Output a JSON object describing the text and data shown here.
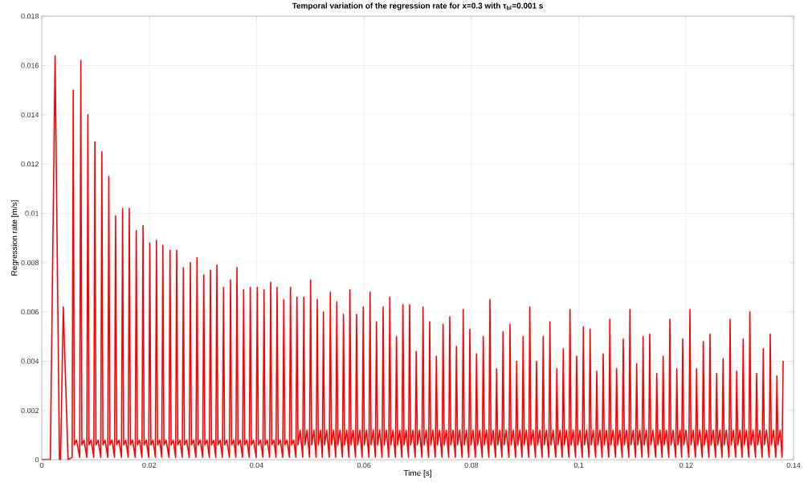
{
  "chart_data": {
    "type": "line",
    "title": "Temporal variation of the regression rate for x=0.3 with τ$_{bl}$=0.001 s",
    "xlabel": "Time [s]",
    "ylabel": "Regression rate [m/s]",
    "xlim": [
      0,
      0.14
    ],
    "ylim": [
      0,
      0.018
    ],
    "xticks": [
      0,
      0.02,
      0.04,
      0.06,
      0.08,
      0.1,
      0.12,
      0.14
    ],
    "yticks": [
      0,
      0.002,
      0.004,
      0.006,
      0.008,
      0.01,
      0.012,
      0.014,
      0.016,
      0.018
    ],
    "grid": true,
    "marker": "none",
    "line_style": "solid",
    "series": [
      {
        "color": "#ff0000",
        "x": [
          0,
          0.0016,
          0.00248,
          0.0033,
          0.0035,
          0.00401,
          0.0049,
          0.00566,
          0.00586,
          0.00606,
          0.00646,
          0.00707,
          0.00727,
          0.00747,
          0.00787,
          0.00839,
          0.00859,
          0.00879,
          0.00919,
          0.00969,
          0.00989,
          0.01009,
          0.01049,
          0.01099,
          0.01119,
          0.01139,
          0.01179,
          0.01229,
          0.01249,
          0.01269,
          0.01309,
          0.01355,
          0.01375,
          0.01395,
          0.01435,
          0.01485,
          0.01505,
          0.01525,
          0.01565,
          0.0161,
          0.0163,
          0.0165,
          0.0169,
          0.0174,
          0.0176,
          0.0178,
          0.0182,
          0.01866,
          0.01886,
          0.01906,
          0.01946,
          0.01992,
          0.02012,
          0.02032,
          0.02072,
          0.02116,
          0.02136,
          0.02156,
          0.02196,
          0.02235,
          0.02255,
          0.02275,
          0.02315,
          0.02369,
          0.02389,
          0.02409,
          0.02449,
          0.02493,
          0.02513,
          0.02533,
          0.02573,
          0.02617,
          0.02637,
          0.02657,
          0.02697,
          0.02747,
          0.02767,
          0.02787,
          0.02827,
          0.02871,
          0.02891,
          0.02911,
          0.02951,
          0.02997,
          0.03017,
          0.03037,
          0.03077,
          0.03121,
          0.03141,
          0.03161,
          0.03201,
          0.03241,
          0.03261,
          0.03281,
          0.03321,
          0.03365,
          0.03385,
          0.03405,
          0.03445,
          0.03495,
          0.03515,
          0.03535,
          0.03575,
          0.03615,
          0.03635,
          0.03655,
          0.03695,
          0.03739,
          0.03759,
          0.03779,
          0.03819,
          0.03864,
          0.03884,
          0.03904,
          0.03944,
          0.03993,
          0.04013,
          0.04033,
          0.04073,
          0.04119,
          0.04139,
          0.04159,
          0.04199,
          0.04243,
          0.04263,
          0.04283,
          0.04323,
          0.04362,
          0.04382,
          0.04402,
          0.04442,
          0.04487,
          0.04507,
          0.04527,
          0.04567,
          0.04612,
          0.04632,
          0.04652,
          0.04692,
          0.04732,
          0.04752,
          0.04772,
          0.04812,
          0.0486,
          0.0488,
          0.049,
          0.0494,
          0.04986,
          0.05006,
          0.05026,
          0.05066,
          0.0511,
          0.0513,
          0.0515,
          0.0519,
          0.05225,
          0.05245,
          0.05265,
          0.05305,
          0.05354,
          0.05374,
          0.05394,
          0.05434,
          0.05474,
          0.05494,
          0.05514,
          0.05554,
          0.05599,
          0.05619,
          0.05639,
          0.05679,
          0.05719,
          0.05739,
          0.05759,
          0.05799,
          0.05843,
          0.05863,
          0.05883,
          0.05923,
          0.05967,
          0.05987,
          0.06007,
          0.06047,
          0.06093,
          0.06113,
          0.06133,
          0.06173,
          0.06213,
          0.06233,
          0.06253,
          0.06293,
          0.06337,
          0.06357,
          0.06377,
          0.06417,
          0.06461,
          0.06481,
          0.06501,
          0.06541,
          0.06586,
          0.06606,
          0.06626,
          0.06666,
          0.06706,
          0.06726,
          0.06746,
          0.06786,
          0.0683,
          0.0685,
          0.0687,
          0.0691,
          0.06954,
          0.06974,
          0.06994,
          0.07034,
          0.0708,
          0.071,
          0.0712,
          0.0716,
          0.07204,
          0.07224,
          0.07244,
          0.07284,
          0.07328,
          0.07348,
          0.07368,
          0.07408,
          0.07454,
          0.07474,
          0.07494,
          0.07534,
          0.07578,
          0.07598,
          0.07618,
          0.07658,
          0.07702,
          0.07722,
          0.07742,
          0.07782,
          0.07828,
          0.07848,
          0.07868,
          0.07908,
          0.07952,
          0.07972,
          0.07992,
          0.08032,
          0.08076,
          0.08096,
          0.08116,
          0.08156,
          0.08202,
          0.08222,
          0.08242,
          0.08282,
          0.08326,
          0.08346,
          0.08366,
          0.08406,
          0.0845,
          0.0847,
          0.0849,
          0.0853,
          0.0857,
          0.0859,
          0.0861,
          0.0865,
          0.087,
          0.0872,
          0.0874,
          0.0878,
          0.08824,
          0.08844,
          0.08864,
          0.08904,
          0.08944,
          0.08964,
          0.08984,
          0.09024,
          0.09069,
          0.09089,
          0.09109,
          0.09149,
          0.09194,
          0.09214,
          0.09234,
          0.09274,
          0.09318,
          0.09338,
          0.09358,
          0.09398,
          0.09443,
          0.09463,
          0.09483,
          0.09523,
          0.09572,
          0.09592,
          0.09612,
          0.09652,
          0.09692,
          0.09712,
          0.09732,
          0.09772,
          0.09817,
          0.09837,
          0.09857,
          0.09897,
          0.09941,
          0.09961,
          0.09981,
          0.10021,
          0.10066,
          0.10086,
          0.10106,
          0.10146,
          0.10191,
          0.10211,
          0.10231,
          0.10271,
          0.10315,
          0.10335,
          0.10355,
          0.10395,
          0.10435,
          0.10455,
          0.10475,
          0.10515,
          0.10559,
          0.10579,
          0.10599,
          0.10639,
          0.10685,
          0.10705,
          0.10725,
          0.10765,
          0.10809,
          0.10829,
          0.10849,
          0.10889,
          0.10933,
          0.10953,
          0.10973,
          0.11013,
          0.11058,
          0.11078,
          0.11098,
          0.11138,
          0.11178,
          0.11198,
          0.11218,
          0.11258,
          0.11302,
          0.11322,
          0.11342,
          0.11382,
          0.11433,
          0.11453,
          0.11473,
          0.11513,
          0.11552,
          0.11572,
          0.11592,
          0.11632,
          0.11677,
          0.11697,
          0.11717,
          0.11757,
          0.11806,
          0.11826,
          0.11846,
          0.11886,
          0.11916,
          0.11936,
          0.11956,
          0.11996,
          0.1205,
          0.1207,
          0.1209,
          0.1213,
          0.12174,
          0.12194,
          0.12214,
          0.12254,
          0.123,
          0.1232,
          0.1234,
          0.1238,
          0.12424,
          0.12444,
          0.12464,
          0.12504,
          0.12548,
          0.12568,
          0.12588,
          0.12628,
          0.12668,
          0.12688,
          0.12708,
          0.12748,
          0.12798,
          0.12818,
          0.12838,
          0.12878,
          0.12922,
          0.12942,
          0.12962,
          0.13002,
          0.13042,
          0.13062,
          0.13082,
          0.13122,
          0.13167,
          0.13187,
          0.13207,
          0.13247,
          0.13292,
          0.13312,
          0.13332,
          0.13372,
          0.13416,
          0.13436,
          0.13456,
          0.13496,
          0.13546,
          0.13566,
          0.13586,
          0.13626,
          0.1367,
          0.1369,
          0.1371,
          0.1375,
          0.13786,
          0.13806
        ],
        "values": [
          0,
          0,
          0.0164,
          0,
          0,
          0.0062,
          0,
          0.0001,
          0.015,
          0.0006,
          0.0008,
          0.0001,
          0.0162,
          0.0006,
          0.0008,
          0.0001,
          0.014,
          0.0006,
          0.0008,
          0.0001,
          0.0129,
          0.0006,
          0.0008,
          0.0001,
          0.0125,
          0.0006,
          0.0008,
          0.0001,
          0.0115,
          0.0006,
          0.0008,
          0.0001,
          0.0099,
          0.0006,
          0.0008,
          0.0001,
          0.0102,
          0.0006,
          0.0008,
          0.0001,
          0.0102,
          0.0006,
          0.0008,
          0.0001,
          0.0093,
          0.0006,
          0.0008,
          0.0001,
          0.0095,
          0.0006,
          0.0008,
          0.0001,
          0.0088,
          0.0006,
          0.0008,
          0.0001,
          0.0089,
          0.0006,
          0.0008,
          0.0001,
          0.0087,
          0.0006,
          0.0008,
          0.0001,
          0.0085,
          0.0006,
          0.0008,
          0.0001,
          0.0085,
          0.0006,
          0.0008,
          0.0001,
          0.0078,
          0.0006,
          0.0008,
          0.0001,
          0.008,
          0.0006,
          0.0008,
          0.0001,
          0.0082,
          0.0006,
          0.0008,
          0.0001,
          0.0075,
          0.0006,
          0.0008,
          0.0001,
          0.0077,
          0.0006,
          0.0008,
          0.0001,
          0.0079,
          0.0006,
          0.0008,
          0.0001,
          0.007,
          0.0006,
          0.0008,
          0.0001,
          0.0073,
          0.0006,
          0.0008,
          0.0001,
          0.0078,
          0.0006,
          0.0008,
          0.0001,
          0.0069,
          0.0006,
          0.0008,
          0.0001,
          0.007,
          0.0006,
          0.0008,
          0.0001,
          0.007,
          0.0006,
          0.0008,
          0.0001,
          0.0069,
          0.0006,
          0.0008,
          0.0001,
          0.0072,
          0.0006,
          0.0008,
          0.0001,
          0.007,
          0.0006,
          0.0008,
          0.0001,
          0.0065,
          0.0006,
          0.0008,
          0.0001,
          0.007,
          0.0006,
          0.0008,
          0.0001,
          0.0066,
          0.0006,
          0.0012,
          0.0001,
          0.0066,
          0.0006,
          0.0012,
          0.0001,
          0.0073,
          0.0006,
          0.0012,
          0.0001,
          0.0065,
          0.0006,
          0.0012,
          0.0001,
          0.006,
          0.0006,
          0.0012,
          0.0001,
          0.0068,
          0.0006,
          0.0012,
          0.0001,
          0.0064,
          0.0006,
          0.0012,
          0.0001,
          0.0059,
          0.0006,
          0.0012,
          0.0001,
          0.0069,
          0.0006,
          0.0012,
          0.0001,
          0.0059,
          0.0006,
          0.0012,
          0.0001,
          0.0062,
          0.0006,
          0.0012,
          0.0001,
          0.0068,
          0.0006,
          0.0012,
          0.0001,
          0.0056,
          0.0006,
          0.0012,
          0.0001,
          0.0062,
          0.0006,
          0.0012,
          0.0001,
          0.0066,
          0.0006,
          0.0012,
          0.0001,
          0.005,
          0.0006,
          0.0012,
          0.0001,
          0.0063,
          0.0006,
          0.0012,
          0.0001,
          0.0063,
          0.0006,
          0.0012,
          0.0001,
          0.0044,
          0.0006,
          0.0012,
          0.0001,
          0.0062,
          0.0006,
          0.0012,
          0.0001,
          0.0056,
          0.0006,
          0.0012,
          0.0001,
          0.0042,
          0.0006,
          0.0012,
          0.0001,
          0.0055,
          0.0006,
          0.0012,
          0.0001,
          0.0058,
          0.0006,
          0.0012,
          0.0001,
          0.0046,
          0.0006,
          0.0012,
          0.0001,
          0.0061,
          0.0006,
          0.0012,
          0.0001,
          0.0053,
          0.0006,
          0.0012,
          0.0001,
          0.0043,
          0.0006,
          0.0012,
          0.0001,
          0.005,
          0.0006,
          0.0012,
          0.0001,
          0.0065,
          0.0006,
          0.0012,
          0.0001,
          0.0037,
          0.0006,
          0.0012,
          0.0001,
          0.0052,
          0.0006,
          0.0012,
          0.0001,
          0.0055,
          0.0006,
          0.0012,
          0.0001,
          0.004,
          0.0006,
          0.0012,
          0.0001,
          0.005,
          0.0006,
          0.0012,
          0.0001,
          0.0062,
          0.0006,
          0.0012,
          0.0001,
          0.004,
          0.0006,
          0.0012,
          0.0001,
          0.005,
          0.0006,
          0.0012,
          0.0001,
          0.0056,
          0.0006,
          0.0012,
          0.0001,
          0.0037,
          0.0006,
          0.0012,
          0.0001,
          0.0045,
          0.0006,
          0.0012,
          0.0001,
          0.0061,
          0.0006,
          0.0012,
          0.0001,
          0.0042,
          0.0006,
          0.0012,
          0.0001,
          0.0054,
          0.0006,
          0.0012,
          0.0001,
          0.0053,
          0.0006,
          0.0012,
          0.0001,
          0.0036,
          0.0006,
          0.0012,
          0.0001,
          0.0043,
          0.0006,
          0.0012,
          0.0001,
          0.0057,
          0.0006,
          0.0012,
          0.0001,
          0.0037,
          0.0006,
          0.0012,
          0.0001,
          0.0049,
          0.0006,
          0.0012,
          0.0001,
          0.0061,
          0.0006,
          0.0012,
          0.0001,
          0.0039,
          0.0006,
          0.0012,
          0.0001,
          0.005,
          0.0006,
          0.0012,
          0.0001,
          0.0051,
          0.0006,
          0.0012,
          0.0001,
          0.0035,
          0.0006,
          0.0012,
          0.0001,
          0.0042,
          0.0006,
          0.0012,
          0.0001,
          0.0057,
          0.0006,
          0.0012,
          0.0001,
          0.0037,
          0.0006,
          0.0012,
          0.0001,
          0.0049,
          0.0006,
          0.0012,
          0.0001,
          0.0061,
          0.0006,
          0.0012,
          0.0001,
          0.0037,
          0.0006,
          0.0012,
          0.0001,
          0.0048,
          0.0006,
          0.0012,
          0.0001,
          0.0051,
          0.0006,
          0.0012,
          0.0001,
          0.0035,
          0.0006,
          0.0012,
          0.0001,
          0.0041,
          0.0006,
          0.0012,
          0.0001,
          0.0057,
          0.0006,
          0.0012,
          0.0001,
          0.0036,
          0.0006,
          0.0012,
          0.0001,
          0.0049,
          0.0006,
          0.0012,
          0.0001,
          0.006,
          0.0006,
          0.0012,
          0.0001,
          0.0035,
          0.0006,
          0.0012,
          0.0001,
          0.0045,
          0.0006,
          0.0012,
          0.0001,
          0.0051,
          0.0006,
          0.0012,
          0.0001,
          0.0034,
          0.0006,
          0.0012,
          0.0001,
          0.004
        ]
      }
    ]
  }
}
